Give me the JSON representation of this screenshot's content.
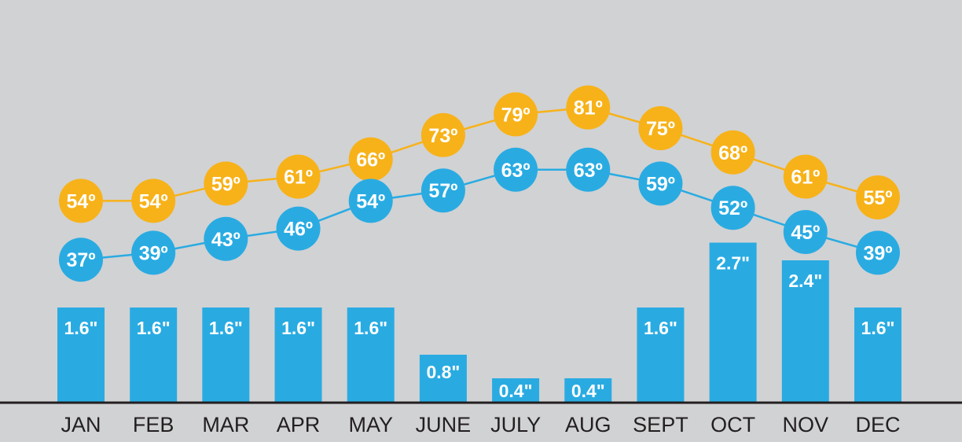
{
  "chart_data": {
    "type": "bar",
    "categories": [
      "JAN",
      "FEB",
      "MAR",
      "APR",
      "MAY",
      "JUNE",
      "JULY",
      "AUG",
      "SEPT",
      "OCT",
      "NOV",
      "DEC"
    ],
    "series": [
      {
        "kind": "bar",
        "values": [
          1.6,
          1.6,
          1.6,
          1.6,
          1.6,
          0.8,
          0.4,
          0.4,
          1.6,
          2.7,
          2.4,
          1.6
        ],
        "labels": [
          "1.6\"",
          "1.6\"",
          "1.6\"",
          "1.6\"",
          "1.6\"",
          "0.8\"",
          "0.4\"",
          "0.4\"",
          "1.6\"",
          "2.7\"",
          "2.4\"",
          "1.6\""
        ],
        "color": "#29ABE2"
      },
      {
        "kind": "line",
        "values": [
          54,
          54,
          59,
          61,
          66,
          73,
          79,
          81,
          75,
          68,
          61,
          55
        ],
        "labels": [
          "54º",
          "54º",
          "59º",
          "61º",
          "66º",
          "73º",
          "79º",
          "81º",
          "75º",
          "68º",
          "61º",
          "55º"
        ],
        "color": "#F7B219"
      },
      {
        "kind": "line",
        "values": [
          37,
          39,
          43,
          46,
          54,
          57,
          63,
          63,
          59,
          52,
          45,
          39
        ],
        "labels": [
          "37º",
          "39º",
          "43º",
          "46º",
          "54º",
          "57º",
          "63º",
          "63º",
          "59º",
          "52º",
          "45º",
          "39º"
        ],
        "color": "#29ABE2"
      }
    ],
    "title": "",
    "xlabel": "",
    "ylabel": "",
    "background": "#D1D2D4",
    "baseline_color": "#231F20",
    "category_label_color": "#231F20",
    "marker_label_color": "#FFFFFF",
    "grid": false
  }
}
